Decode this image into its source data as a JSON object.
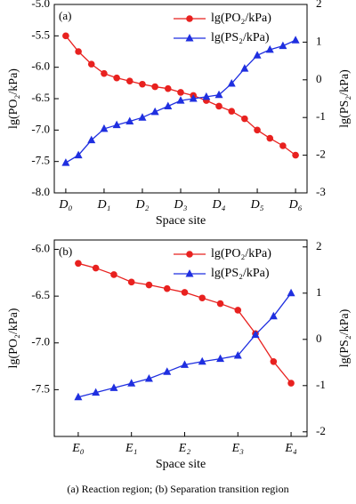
{
  "chart_data": [
    {
      "type": "line",
      "panel_label": "(a)",
      "x_label": "Space site",
      "y_label": "lg(PO₂/kPa)",
      "y2_label": "lg(PS₂/kPa)",
      "x": [
        0,
        0.33,
        0.67,
        1,
        1.33,
        1.67,
        2,
        2.33,
        2.67,
        3,
        3.33,
        3.67,
        4,
        4.33,
        4.67,
        5,
        5.33,
        5.67,
        6
      ],
      "xlim": [
        -0.3,
        6.3
      ],
      "xticks": [
        {
          "value": 0,
          "label": "D₀"
        },
        {
          "value": 1,
          "label": "D₁"
        },
        {
          "value": 2,
          "label": "D₂"
        },
        {
          "value": 3,
          "label": "D₃"
        },
        {
          "value": 4,
          "label": "D₄"
        },
        {
          "value": 5,
          "label": "D₅"
        },
        {
          "value": 6,
          "label": "D₆"
        }
      ],
      "ylim": [
        -8.0,
        -5.0
      ],
      "yticks": [
        {
          "value": -5.0,
          "label": "-5.0"
        },
        {
          "value": -5.5,
          "label": "-5.5"
        },
        {
          "value": -6.0,
          "label": "-6.0"
        },
        {
          "value": -6.5,
          "label": "-6.5"
        },
        {
          "value": -7.0,
          "label": "-7.0"
        },
        {
          "value": -7.5,
          "label": "-7.5"
        },
        {
          "value": -8.0,
          "label": "-8.0"
        }
      ],
      "y2lim": [
        -3,
        2
      ],
      "y2ticks": [
        2,
        1,
        0,
        -1,
        -2,
        -3
      ],
      "legend": "upper right",
      "series": [
        {
          "name": "lg(PO₂/kPa)",
          "color": "#e8211f",
          "marker": "circle",
          "values": [
            -5.5,
            -5.75,
            -5.95,
            -6.1,
            -6.17,
            -6.22,
            -6.27,
            -6.31,
            -6.34,
            -6.4,
            -6.45,
            -6.53,
            -6.62,
            -6.7,
            -6.82,
            -7.0,
            -7.13,
            -7.25,
            -7.4
          ]
        },
        {
          "name": "lg(PS₂/kPa)",
          "color": "#1f2fe0",
          "marker": "triangle",
          "axis": "y2",
          "values": [
            -2.2,
            -2.0,
            -1.6,
            -1.3,
            -1.2,
            -1.1,
            -1.0,
            -0.85,
            -0.7,
            -0.55,
            -0.5,
            -0.45,
            -0.4,
            -0.1,
            0.3,
            0.65,
            0.8,
            0.9,
            1.05
          ]
        }
      ]
    },
    {
      "type": "line",
      "panel_label": "(b)",
      "x_label": "Space site",
      "y_label": "lg(PO₂/kPa)",
      "y2_label": "lg(PS₂/kPa)",
      "x": [
        0,
        0.33,
        0.67,
        1,
        1.33,
        1.67,
        2,
        2.33,
        2.67,
        3,
        3.33,
        3.67,
        4
      ],
      "xlim": [
        -0.45,
        4.3
      ],
      "xticks": [
        {
          "value": 0,
          "label": "E₀"
        },
        {
          "value": 1,
          "label": "E₁"
        },
        {
          "value": 2,
          "label": "E₂"
        },
        {
          "value": 3,
          "label": "E₃"
        },
        {
          "value": 4,
          "label": "E₄"
        }
      ],
      "ylim": [
        -8.0,
        -5.9
      ],
      "yticks": [
        {
          "value": -6.0,
          "label": "-6.0"
        },
        {
          "value": -6.5,
          "label": "-6.5"
        },
        {
          "value": -7.0,
          "label": "-7.0"
        },
        {
          "value": -7.5,
          "label": "-7.5"
        }
      ],
      "y2lim": [
        -2.1,
        2.15
      ],
      "y2ticks": [
        2,
        1,
        0,
        -1,
        -2
      ],
      "legend": "upper right",
      "series": [
        {
          "name": "lg(PO₂/kPa)",
          "color": "#e8211f",
          "marker": "circle",
          "values": [
            -6.15,
            -6.2,
            -6.27,
            -6.35,
            -6.38,
            -6.42,
            -6.46,
            -6.52,
            -6.58,
            -6.65,
            -6.9,
            -7.2,
            -7.43
          ]
        },
        {
          "name": "lg(PS₂/kPa)",
          "color": "#1f2fe0",
          "marker": "triangle",
          "axis": "y2",
          "values": [
            -1.25,
            -1.15,
            -1.05,
            -0.95,
            -0.85,
            -0.7,
            -0.55,
            -0.48,
            -0.42,
            -0.35,
            0.1,
            0.5,
            1.0
          ]
        }
      ]
    }
  ],
  "caption": "(a) Reaction region; (b) Separation transition region"
}
